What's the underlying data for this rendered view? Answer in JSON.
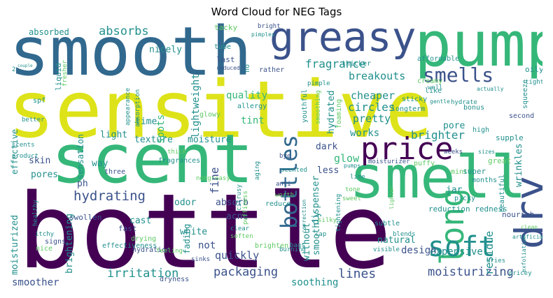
{
  "title": "Word Cloud for NEG Tags",
  "palette": {
    "dark-purple": "#440154",
    "indigo": "#3b528b",
    "blue": "#31688e",
    "teal": "#21908d",
    "green": "#35b779",
    "lime": "#5ec962",
    "yellow": "#dde318"
  },
  "words": [
    {
      "text": "bottle",
      "color": "dark-purple"
    },
    {
      "text": "sensitive",
      "color": "yellow"
    },
    {
      "text": "smooth",
      "color": "blue"
    },
    {
      "text": "scent",
      "color": "green"
    },
    {
      "text": "smell",
      "color": "green"
    },
    {
      "text": "pump",
      "color": "green"
    },
    {
      "text": "greasy",
      "color": "indigo"
    },
    {
      "text": "price",
      "color": "dark-purple"
    },
    {
      "text": "long",
      "color": "green"
    },
    {
      "text": "dry",
      "color": "indigo"
    },
    {
      "text": "soft",
      "color": "teal"
    },
    {
      "text": "smells",
      "color": "indigo"
    },
    {
      "text": "bottles",
      "color": "blue"
    },
    {
      "text": "hydrating",
      "color": "indigo"
    },
    {
      "text": "packaging",
      "color": "indigo"
    },
    {
      "text": "moisturizing",
      "color": "indigo"
    },
    {
      "text": "lines",
      "color": "indigo"
    },
    {
      "text": "irritation",
      "color": "teal"
    },
    {
      "text": "fragrance",
      "color": "teal"
    },
    {
      "text": "breakouts",
      "color": "teal"
    },
    {
      "text": "absorbs",
      "color": "teal"
    },
    {
      "text": "cheaper",
      "color": "teal"
    },
    {
      "text": "circles",
      "color": "teal"
    },
    {
      "text": "pretty",
      "color": "teal"
    },
    {
      "text": "brighter",
      "color": "teal"
    },
    {
      "text": "glow",
      "color": "green"
    },
    {
      "text": "soothing",
      "color": "teal"
    },
    {
      "text": "expensive",
      "color": "teal"
    },
    {
      "text": "design",
      "color": "indigo"
    },
    {
      "text": "smoother",
      "color": "indigo"
    },
    {
      "text": "quickly",
      "color": "indigo"
    },
    {
      "text": "texture",
      "color": "teal"
    },
    {
      "text": "moisture",
      "color": "teal"
    },
    {
      "text": "absorbed",
      "color": "teal"
    },
    {
      "text": "nicely",
      "color": "teal"
    },
    {
      "text": "quality",
      "color": "green"
    },
    {
      "text": "tint",
      "color": "green"
    },
    {
      "text": "works",
      "color": "teal"
    },
    {
      "text": "dark",
      "color": "indigo"
    },
    {
      "text": "acne",
      "color": "indigo"
    },
    {
      "text": "cast",
      "color": "teal"
    },
    {
      "text": "white",
      "color": "teal"
    },
    {
      "text": "not",
      "color": "indigo"
    },
    {
      "text": "absorb",
      "color": "indigo"
    },
    {
      "text": "odor",
      "color": "teal"
    },
    {
      "text": "fine",
      "color": "indigo"
    },
    {
      "text": "less",
      "color": "indigo"
    },
    {
      "text": "residue",
      "color": "teal"
    },
    {
      "text": "wrinkles",
      "color": "teal"
    },
    {
      "text": "natural",
      "color": "teal"
    },
    {
      "text": "jar",
      "color": "teal"
    },
    {
      "text": "pore",
      "color": "teal"
    },
    {
      "text": "reduction redness",
      "color": "teal"
    },
    {
      "text": "nourish",
      "color": "indigo"
    },
    {
      "text": "skin",
      "color": "indigo"
    },
    {
      "text": "way",
      "color": "teal"
    },
    {
      "text": "pores",
      "color": "teal"
    },
    {
      "text": "ph",
      "color": "indigo"
    },
    {
      "text": "light",
      "color": "teal"
    },
    {
      "text": "spots",
      "color": "green"
    },
    {
      "text": "time",
      "color": "teal"
    },
    {
      "text": "lightweight",
      "color": "teal"
    },
    {
      "text": "moisturized",
      "color": "teal"
    },
    {
      "text": "brightening",
      "color": "teal"
    },
    {
      "text": "sensation",
      "color": "teal"
    },
    {
      "text": "effective",
      "color": "teal"
    },
    {
      "text": "smoothly",
      "color": "teal"
    },
    {
      "text": "without",
      "color": "teal"
    },
    {
      "text": "dispenser",
      "color": "teal"
    },
    {
      "text": "hydrated",
      "color": "teal"
    },
    {
      "text": "fading",
      "color": "teal"
    },
    {
      "text": "spf",
      "color": "teal"
    },
    {
      "text": "liquid",
      "color": "teal"
    },
    {
      "text": "tacky",
      "color": "lime"
    },
    {
      "text": "last",
      "color": "indigo"
    },
    {
      "text": "tube",
      "color": "teal"
    },
    {
      "text": "bright",
      "color": "indigo"
    },
    {
      "text": "pimples",
      "color": "teal"
    },
    {
      "text": "reduced",
      "color": "indigo"
    },
    {
      "text": "no",
      "color": "teal"
    },
    {
      "text": "rather",
      "color": "indigo"
    },
    {
      "text": "thicker",
      "color": "teal"
    },
    {
      "text": "affordable",
      "color": "teal"
    },
    {
      "text": "oily",
      "color": "teal"
    },
    {
      "text": "creamy",
      "color": "lime"
    },
    {
      "text": "like",
      "color": "teal"
    },
    {
      "text": "well",
      "color": "teal"
    },
    {
      "text": "sticky",
      "color": "teal"
    },
    {
      "text": "longterm",
      "color": "teal"
    },
    {
      "text": "youthful",
      "color": "teal"
    },
    {
      "text": "pimple",
      "color": "teal"
    },
    {
      "text": "allergy",
      "color": "teal"
    },
    {
      "text": "glowy",
      "color": "lime"
    },
    {
      "text": "appearance",
      "color": "teal"
    },
    {
      "text": "absorption",
      "color": "teal"
    },
    {
      "text": "foaming",
      "color": "lime"
    },
    {
      "text": "smoothing",
      "color": "lime"
    },
    {
      "text": "bonus",
      "color": "teal"
    },
    {
      "text": "hydrate",
      "color": "teal"
    },
    {
      "text": "second",
      "color": "indigo"
    },
    {
      "text": "squeeze",
      "color": "teal"
    },
    {
      "text": "supple",
      "color": "teal"
    },
    {
      "text": "high",
      "color": "teal"
    },
    {
      "text": "weeks",
      "color": "indigo"
    },
    {
      "text": "moisturizer",
      "color": "indigo"
    },
    {
      "text": "puffy",
      "color": "lime"
    },
    {
      "text": "great",
      "color": "lime"
    },
    {
      "text": "mint",
      "color": "lime"
    },
    {
      "text": "super",
      "color": "teal"
    },
    {
      "text": "months",
      "color": "teal"
    },
    {
      "text": "picky",
      "color": "teal"
    },
    {
      "text": "beautiful",
      "color": "teal"
    },
    {
      "text": "three",
      "color": "indigo"
    },
    {
      "text": "thick",
      "color": "lime"
    },
    {
      "text": "fragrances",
      "color": "teal"
    },
    {
      "text": "swollen",
      "color": "indigo"
    },
    {
      "text": "healthy",
      "color": "teal"
    },
    {
      "text": "signs",
      "color": "indigo"
    },
    {
      "text": "itchy",
      "color": "teal"
    },
    {
      "text": "nice",
      "color": "lime"
    },
    {
      "text": "product",
      "color": "teal"
    },
    {
      "text": "scents",
      "color": "teal"
    },
    {
      "text": "better",
      "color": "teal"
    },
    {
      "text": "fast",
      "color": "indigo"
    },
    {
      "text": "drying",
      "color": "lime"
    },
    {
      "text": "effectiveness",
      "color": "teal"
    },
    {
      "text": "hydration",
      "color": "indigo"
    },
    {
      "text": "dryness",
      "color": "indigo"
    },
    {
      "text": "feeling",
      "color": "lime"
    },
    {
      "text": "soften",
      "color": "lime"
    },
    {
      "text": "clear",
      "color": "teal"
    },
    {
      "text": "sinks",
      "color": "indigo"
    },
    {
      "text": "brighten",
      "color": "lime"
    },
    {
      "text": "burning",
      "color": "teal"
    },
    {
      "text": "bags",
      "color": "teal"
    },
    {
      "text": "cap",
      "color": "teal"
    },
    {
      "text": "correction",
      "color": "teal"
    },
    {
      "text": "tightening",
      "color": "teal"
    },
    {
      "text": "reduce",
      "color": "teal"
    },
    {
      "text": "worth",
      "color": "lime"
    },
    {
      "text": "nongreasy",
      "color": "lime"
    },
    {
      "text": "puffiness",
      "color": "lime"
    },
    {
      "text": "citrusy",
      "color": "teal"
    },
    {
      "text": "aging",
      "color": "teal"
    },
    {
      "text": "anti",
      "color": "indigo"
    },
    {
      "text": "bye",
      "color": "indigo"
    },
    {
      "text": "scented",
      "color": "teal"
    },
    {
      "text": "sweet",
      "color": "lime"
    },
    {
      "text": "tone",
      "color": "lime"
    },
    {
      "text": "lime",
      "color": "teal"
    },
    {
      "text": "pumps",
      "color": "teal"
    },
    {
      "text": "subtle",
      "color": "teal"
    },
    {
      "text": "blends",
      "color": "teal"
    },
    {
      "text": "visible",
      "color": "teal"
    },
    {
      "text": "dries",
      "color": "teal"
    },
    {
      "text": "pricey",
      "color": "teal"
    },
    {
      "text": "exfoliation",
      "color": "teal"
    },
    {
      "text": "lighter",
      "color": "lime"
    },
    {
      "text": "fresher",
      "color": "lime"
    },
    {
      "text": "actually",
      "color": "teal"
    },
    {
      "text": "gentle",
      "color": "teal"
    },
    {
      "text": "tighten",
      "color": "teal"
    },
    {
      "text": "sizes",
      "color": "teal"
    },
    {
      "text": "clean",
      "color": "lime"
    },
    {
      "text": "artificial",
      "color": "teal"
    },
    {
      "text": "couple",
      "color": "teal"
    },
    {
      "text": "2",
      "color": "teal"
    },
    {
      "text": "silky",
      "color": "lime"
    }
  ]
}
